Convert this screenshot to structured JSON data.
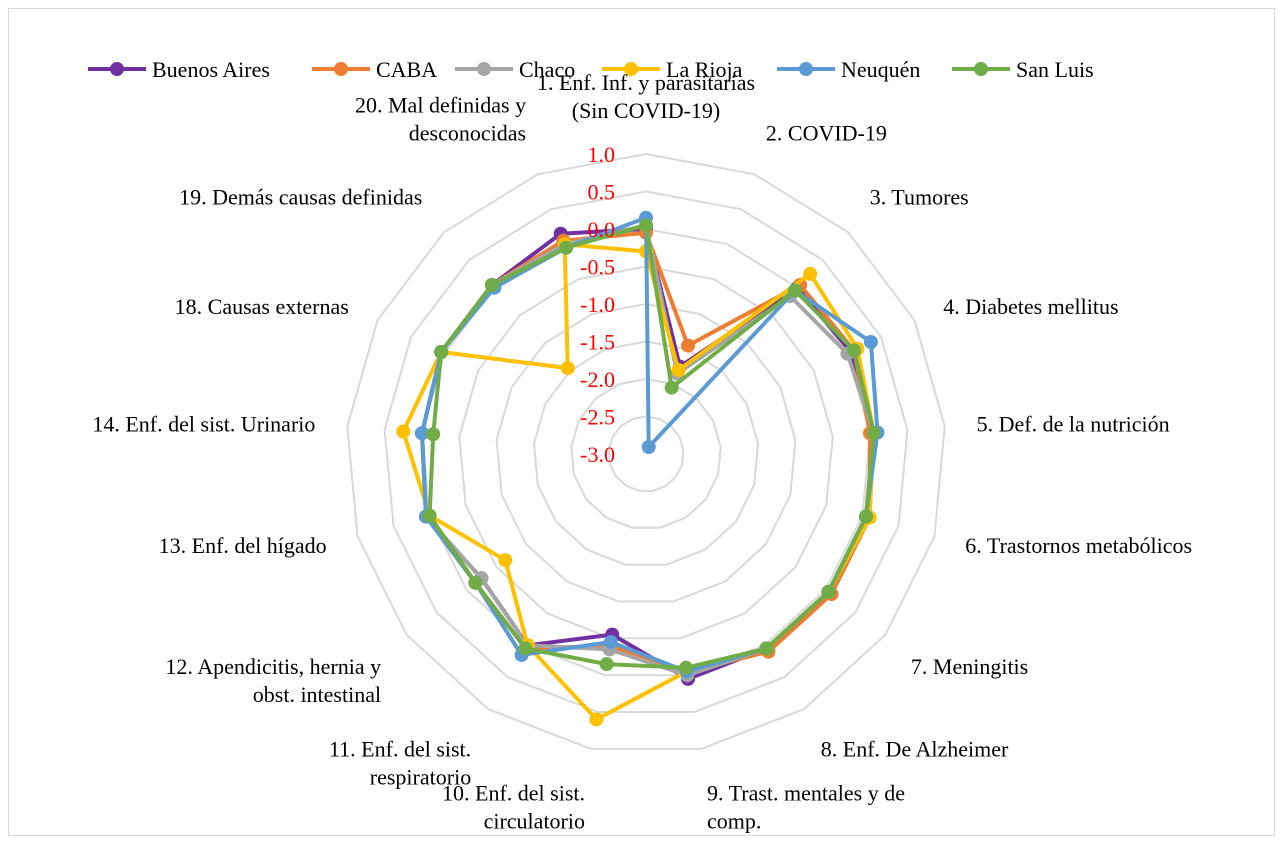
{
  "chart_data": {
    "type": "radar",
    "title": "",
    "range": [
      -3.0,
      1.0
    ],
    "ticks": [
      "1.0",
      "0.5",
      "0.0",
      "-0.5",
      "-1.0",
      "-1.5",
      "-2.0",
      "-2.5",
      "-3.0"
    ],
    "tick_values": [
      1.0,
      0.5,
      0.0,
      -0.5,
      -1.0,
      -1.5,
      -2.0,
      -2.5,
      -3.0
    ],
    "categories": [
      [
        "1. Enf. Inf. y parasitarias",
        "(Sin COVID-19)"
      ],
      [
        "2. COVID-19"
      ],
      [
        "3. Tumores"
      ],
      [
        "4. Diabetes mellitus"
      ],
      [
        "5. Def. de la nutrición"
      ],
      [
        "6. Trastornos metabólicos"
      ],
      [
        "7. Meningitis"
      ],
      [
        "8. Enf. De Alzheimer"
      ],
      [
        "9. Trast. mentales y de",
        "comp."
      ],
      [
        "10. Enf. del sist.",
        "circulatorio"
      ],
      [
        "11. Enf. del sist.",
        "respiratorio"
      ],
      [
        "12. Apendicitis, hernia y",
        "obst. intestinal"
      ],
      [
        "13. Enf. del hígado"
      ],
      [
        "14. Enf. del sist. Urinario"
      ],
      [
        "18. Causas externas"
      ],
      [
        "19. Demás causas definidas"
      ],
      [
        "20. Mal definidas y",
        "desconocidas"
      ]
    ],
    "series": [
      {
        "name": "Buenos Aires",
        "color": "#7030a0",
        "values": [
          0.0,
          -1.75,
          0.0,
          0.05,
          0.05,
          0.05,
          0.05,
          0.05,
          0.05,
          -0.55,
          0.0,
          -0.25,
          0.05,
          0.0,
          0.05,
          0.05,
          0.15
        ]
      },
      {
        "name": "CABA",
        "color": "#ed7d31",
        "values": [
          -0.05,
          -1.45,
          0.05,
          0.1,
          0.0,
          0.1,
          0.1,
          0.1,
          -0.05,
          -0.4,
          0.05,
          -0.15,
          0.05,
          0.0,
          0.05,
          0.05,
          0.05
        ]
      },
      {
        "name": "Chaco",
        "color": "#a5a5a5",
        "values": [
          0.05,
          -1.85,
          -0.15,
          0.0,
          0.05,
          0.05,
          0.05,
          0.05,
          0.0,
          -0.35,
          0.0,
          -0.25,
          0.05,
          0.0,
          0.05,
          0.05,
          0.0
        ]
      },
      {
        "name": "La Rioja",
        "color": "#ffc000",
        "values": [
          -0.3,
          -1.8,
          0.25,
          0.15,
          0.05,
          0.1,
          0.05,
          0.05,
          -0.05,
          0.6,
          0.0,
          -0.65,
          0.0,
          0.25,
          0.05,
          -1.45,
          0.0
        ]
      },
      {
        "name": "Neuquén",
        "color": "#5b9bd5",
        "values": [
          0.15,
          -2.9,
          -0.05,
          0.35,
          0.1,
          0.05,
          0.05,
          0.05,
          -0.05,
          -0.45,
          0.15,
          -0.15,
          0.05,
          0.0,
          0.05,
          0.0,
          -0.05
        ]
      },
      {
        "name": "San Luis",
        "color": "#70ad47",
        "values": [
          0.05,
          -2.05,
          -0.05,
          0.1,
          0.05,
          0.05,
          0.05,
          0.05,
          -0.1,
          -0.15,
          0.05,
          -0.15,
          0.0,
          -0.15,
          0.05,
          0.05,
          -0.05
        ]
      }
    ]
  }
}
